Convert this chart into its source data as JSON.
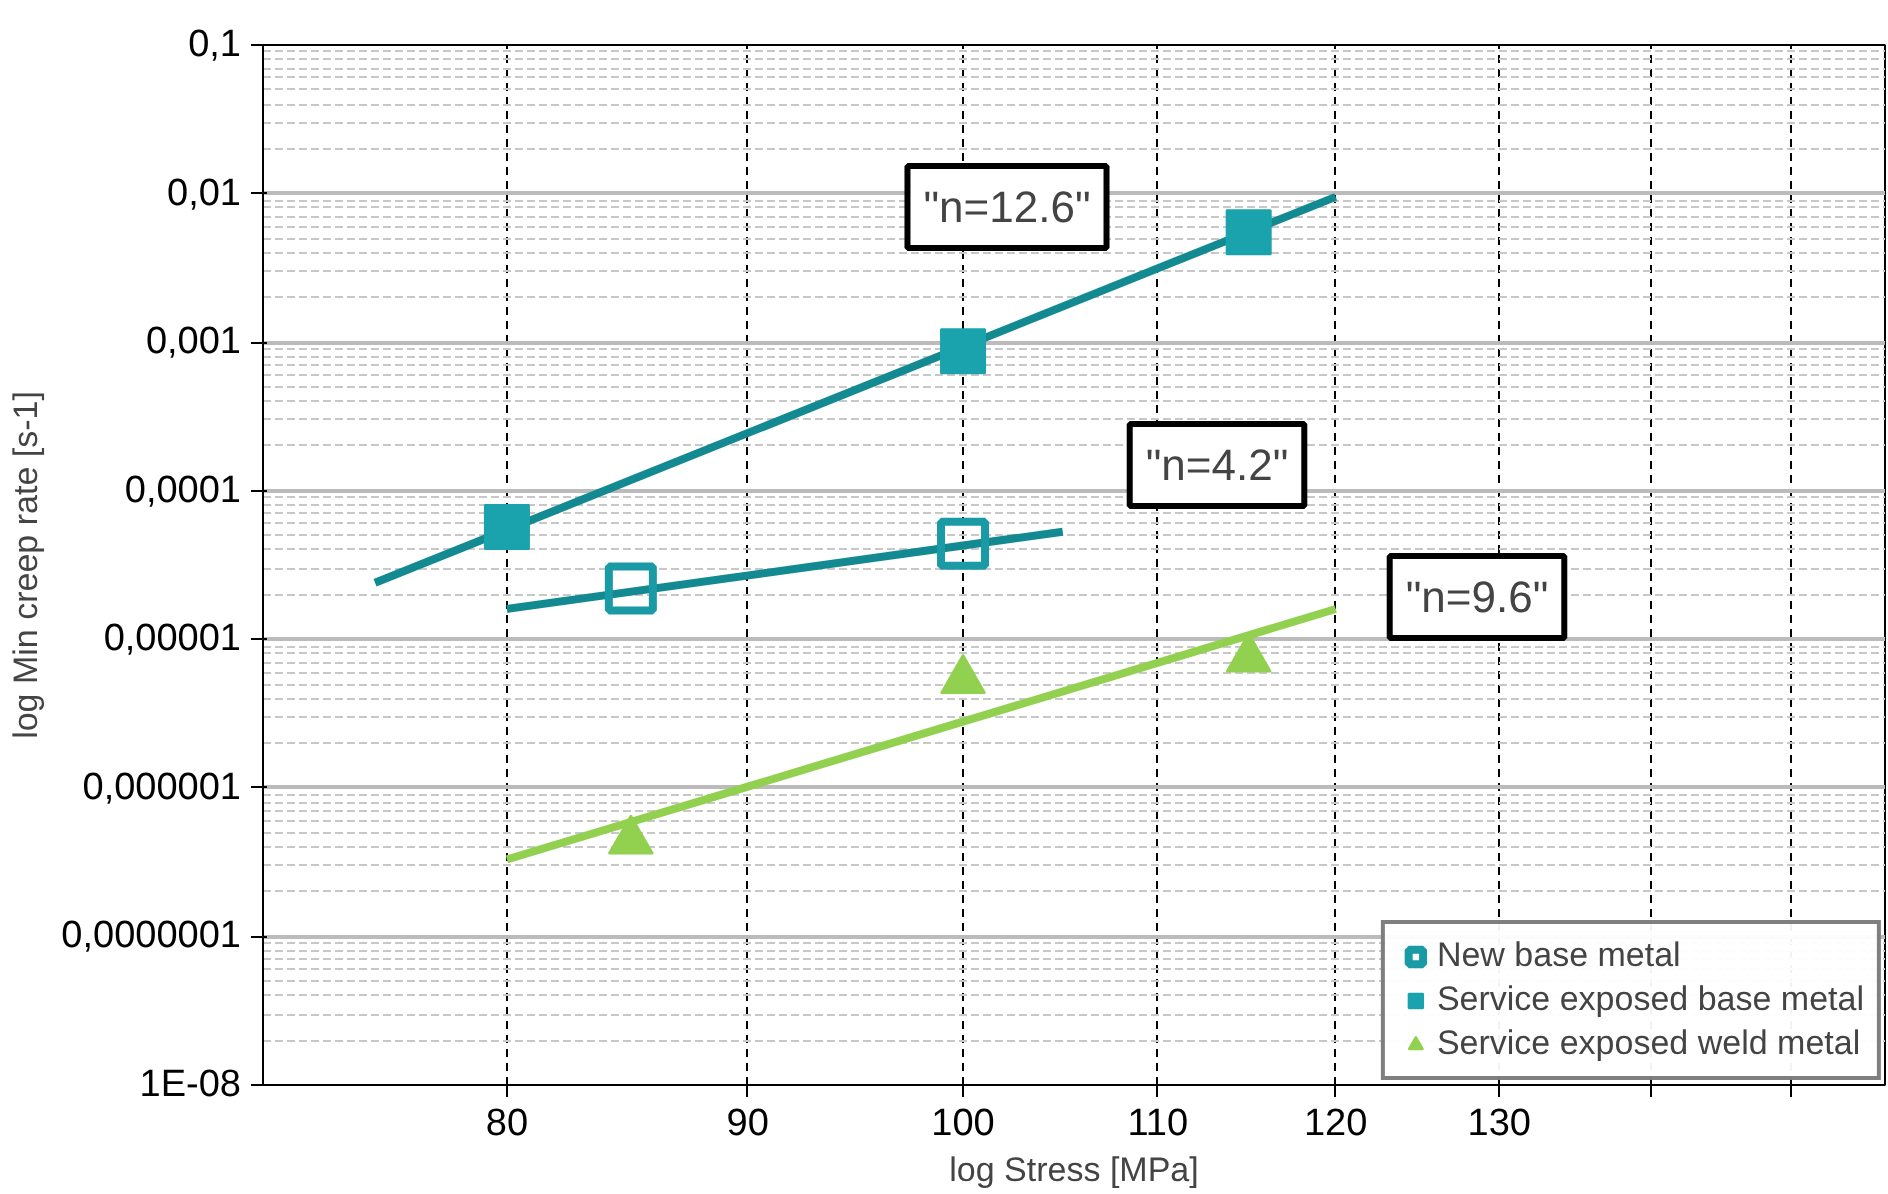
{
  "chart_data": {
    "type": "scatter",
    "xlabel": "log Stress [MPa]",
    "ylabel": "log Min creep rate [s-1]",
    "log": "xy",
    "grid": true,
    "legend": "bottom right",
    "xlim": [
      71,
      157
    ],
    "ylim": [
      1e-08,
      0.1
    ],
    "xticks": [
      80,
      90,
      100,
      110,
      120,
      130,
      {
        "value": 140,
        "label": null
      },
      {
        "value": 150,
        "label": null
      }
    ],
    "yticks": [
      {
        "value": 1e-08,
        "label": "1E-08"
      },
      {
        "value": 1e-07,
        "label": "0,0000001"
      },
      {
        "value": 1e-06,
        "label": "0,000001"
      },
      {
        "value": 1e-05,
        "label": "0,00001"
      },
      {
        "value": 0.0001,
        "label": "0,0001"
      },
      {
        "value": 0.001,
        "label": "0,001"
      },
      {
        "value": 0.01,
        "label": "0,01"
      },
      {
        "value": 0.1,
        "label": "0,1"
      }
    ],
    "series": [
      {
        "type": "line",
        "color": "#138a92",
        "x": [
          75,
          120
        ],
        "values": [
          2.4e-05,
          0.0095
        ]
      },
      {
        "type": "line",
        "color": "#138a92",
        "x": [
          80,
          105
        ],
        "values": [
          1.6e-05,
          5.3e-05
        ]
      },
      {
        "type": "line",
        "color": "#92d050",
        "x": [
          80,
          120
        ],
        "values": [
          3.3e-07,
          1.6e-05
        ]
      },
      {
        "name": "New base metal",
        "marker": "square_open",
        "color": "#1a9aa5",
        "x": [
          85,
          100
        ],
        "values": [
          2.2e-05,
          4.4e-05
        ]
      },
      {
        "name": "Service exposed base metal",
        "marker": "square",
        "color": "#1aa3ad",
        "x": [
          80,
          100,
          115
        ],
        "values": [
          5.7e-05,
          0.00087,
          0.0055
        ]
      },
      {
        "name": "Service exposed weld metal",
        "marker": "triangle",
        "color": "#92d050",
        "x": [
          85,
          100,
          115
        ],
        "values": [
          4.4e-07,
          5.3e-06,
          7.4e-06
        ]
      }
    ],
    "annotations": [
      "\"n=12.6\"",
      "\"n=4.2\"",
      "\"n=9.6\""
    ]
  }
}
